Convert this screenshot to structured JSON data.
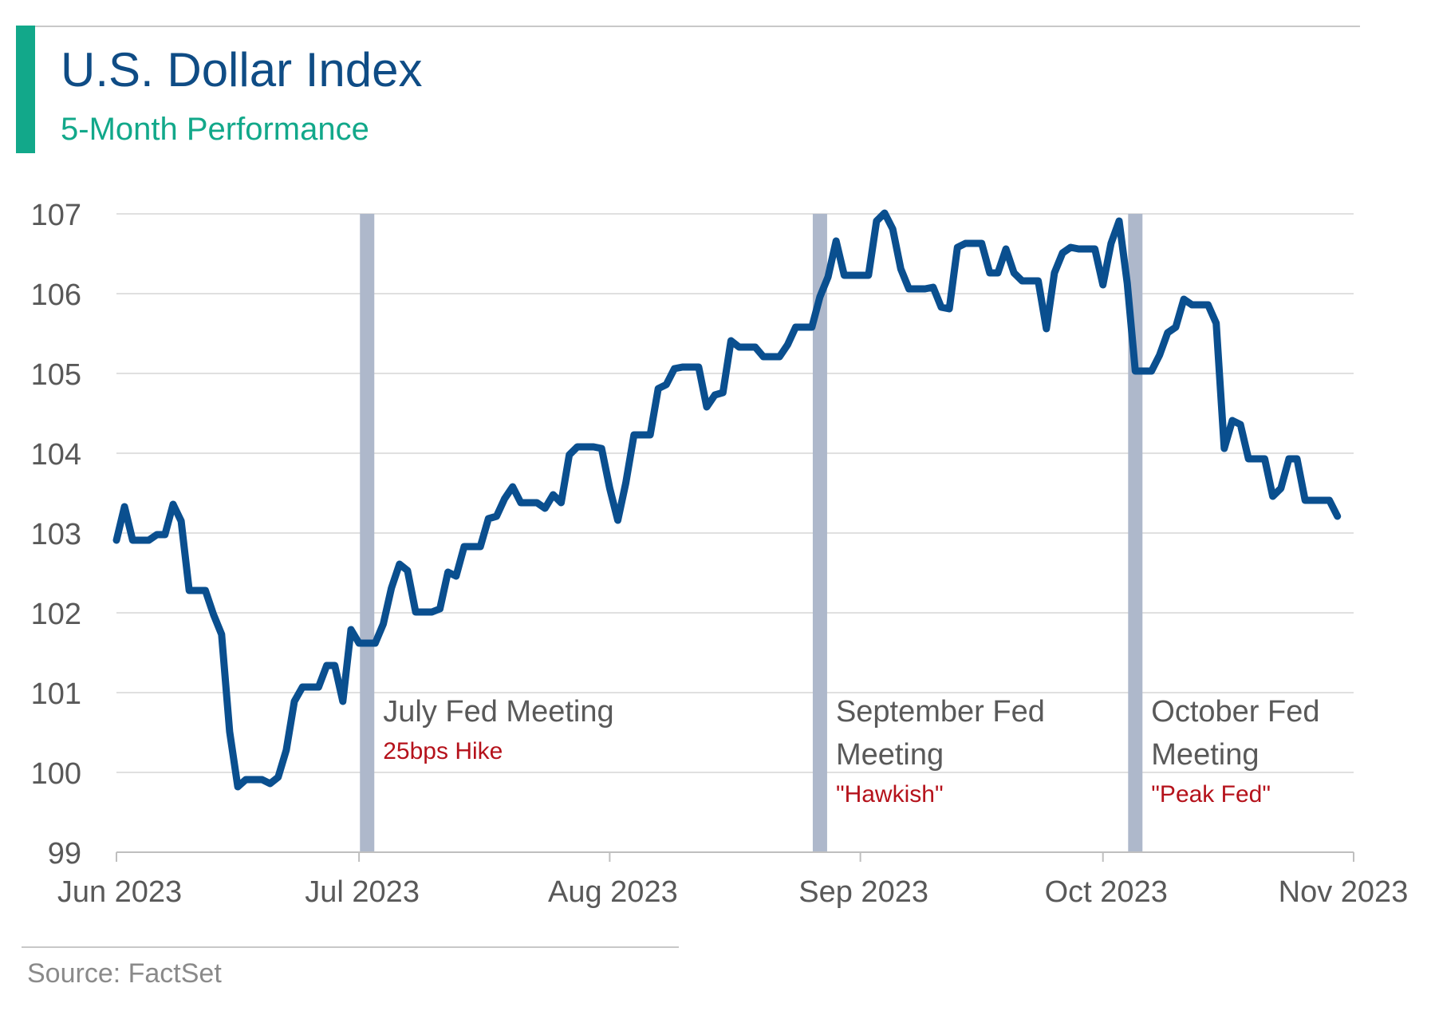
{
  "header": {
    "title": "U.S. Dollar Index",
    "subtitle": "5-Month Performance"
  },
  "footer": {
    "source": "Source: FactSet"
  },
  "colors": {
    "accent": "#12a88a",
    "title": "#0f4c85",
    "line": "#0a4f8f",
    "meeting_band": "#aeb8cb",
    "annotation_note": "#b5121b",
    "annotation_text": "#595959",
    "axis_text": "#595959",
    "gridline": "#d6d6d6"
  },
  "chart_data": {
    "type": "line",
    "title": "U.S. Dollar Index",
    "subtitle": "5-Month Performance",
    "xlabel": "",
    "ylabel": "",
    "ylim": [
      99,
      107
    ],
    "xlim": [
      "2023-06-01",
      "2023-11-01"
    ],
    "grid": true,
    "y_ticks": [
      99,
      100,
      101,
      102,
      103,
      104,
      105,
      106,
      107
    ],
    "x_ticks": [
      {
        "date": "2023-06-01",
        "label": "Jun 2023"
      },
      {
        "date": "2023-07-01",
        "label": "Jul 2023"
      },
      {
        "date": "2023-08-01",
        "label": "Aug 2023"
      },
      {
        "date": "2023-09-01",
        "label": "Sep 2023"
      },
      {
        "date": "2023-10-01",
        "label": "Oct 2023"
      },
      {
        "date": "2023-11-01",
        "label": "Nov 2023"
      }
    ],
    "series": [
      {
        "points": [
          [
            "2023-06-01",
            102.91
          ],
          [
            "2023-06-02",
            103.33
          ],
          [
            "2023-06-03",
            102.91
          ],
          [
            "2023-06-05",
            102.91
          ],
          [
            "2023-06-06",
            102.98
          ],
          [
            "2023-06-07",
            102.98
          ],
          [
            "2023-06-08",
            103.36
          ],
          [
            "2023-06-09",
            103.15
          ],
          [
            "2023-06-10",
            102.28
          ],
          [
            "2023-06-12",
            102.28
          ],
          [
            "2023-06-13",
            101.98
          ],
          [
            "2023-06-14",
            101.73
          ],
          [
            "2023-06-15",
            100.51
          ],
          [
            "2023-06-16",
            99.82
          ],
          [
            "2023-06-17",
            99.91
          ],
          [
            "2023-06-19",
            99.91
          ],
          [
            "2023-06-20",
            99.86
          ],
          [
            "2023-06-21",
            99.94
          ],
          [
            "2023-06-22",
            100.28
          ],
          [
            "2023-06-23",
            100.89
          ],
          [
            "2023-06-24",
            101.07
          ],
          [
            "2023-06-26",
            101.07
          ],
          [
            "2023-06-27",
            101.34
          ],
          [
            "2023-06-28",
            101.34
          ],
          [
            "2023-06-29",
            100.89
          ],
          [
            "2023-06-30",
            101.79
          ],
          [
            "2023-07-01",
            101.62
          ],
          [
            "2023-07-03",
            101.62
          ],
          [
            "2023-07-04",
            101.86
          ],
          [
            "2023-07-05",
            102.31
          ],
          [
            "2023-07-06",
            102.61
          ],
          [
            "2023-07-07",
            102.53
          ],
          [
            "2023-07-08",
            102.01
          ],
          [
            "2023-07-10",
            102.01
          ],
          [
            "2023-07-11",
            102.05
          ],
          [
            "2023-07-12",
            102.51
          ],
          [
            "2023-07-13",
            102.46
          ],
          [
            "2023-07-14",
            102.83
          ],
          [
            "2023-07-16",
            102.83
          ],
          [
            "2023-07-17",
            103.18
          ],
          [
            "2023-07-18",
            103.21
          ],
          [
            "2023-07-19",
            103.43
          ],
          [
            "2023-07-20",
            103.58
          ],
          [
            "2023-07-21",
            103.38
          ],
          [
            "2023-07-23",
            103.38
          ],
          [
            "2023-07-24",
            103.31
          ],
          [
            "2023-07-25",
            103.48
          ],
          [
            "2023-07-26",
            103.38
          ],
          [
            "2023-07-27",
            103.98
          ],
          [
            "2023-07-28",
            104.08
          ],
          [
            "2023-07-30",
            104.08
          ],
          [
            "2023-07-31",
            104.06
          ],
          [
            "2023-08-01",
            103.56
          ],
          [
            "2023-08-02",
            103.16
          ],
          [
            "2023-08-03",
            103.63
          ],
          [
            "2023-08-04",
            104.23
          ],
          [
            "2023-08-06",
            104.23
          ],
          [
            "2023-08-07",
            104.81
          ],
          [
            "2023-08-08",
            104.86
          ],
          [
            "2023-08-09",
            105.06
          ],
          [
            "2023-08-10",
            105.08
          ],
          [
            "2023-08-12",
            105.08
          ],
          [
            "2023-08-13",
            104.58
          ],
          [
            "2023-08-14",
            104.73
          ],
          [
            "2023-08-15",
            104.76
          ],
          [
            "2023-08-16",
            105.41
          ],
          [
            "2023-08-17",
            105.33
          ],
          [
            "2023-08-19",
            105.33
          ],
          [
            "2023-08-20",
            105.21
          ],
          [
            "2023-08-22",
            105.21
          ],
          [
            "2023-08-23",
            105.36
          ],
          [
            "2023-08-24",
            105.58
          ],
          [
            "2023-08-26",
            105.58
          ],
          [
            "2023-08-27",
            105.96
          ],
          [
            "2023-08-28",
            106.21
          ],
          [
            "2023-08-29",
            106.66
          ],
          [
            "2023-08-30",
            106.23
          ],
          [
            "2023-09-01",
            106.23
          ],
          [
            "2023-09-02",
            106.23
          ],
          [
            "2023-09-03",
            106.91
          ],
          [
            "2023-09-04",
            107.01
          ],
          [
            "2023-09-05",
            106.81
          ],
          [
            "2023-09-06",
            106.31
          ],
          [
            "2023-09-07",
            106.06
          ],
          [
            "2023-09-09",
            106.06
          ],
          [
            "2023-09-10",
            106.08
          ],
          [
            "2023-09-11",
            105.83
          ],
          [
            "2023-09-12",
            105.81
          ],
          [
            "2023-09-13",
            106.58
          ],
          [
            "2023-09-14",
            106.63
          ],
          [
            "2023-09-16",
            106.63
          ],
          [
            "2023-09-17",
            106.26
          ],
          [
            "2023-09-18",
            106.26
          ],
          [
            "2023-09-19",
            106.56
          ],
          [
            "2023-09-20",
            106.26
          ],
          [
            "2023-09-21",
            106.16
          ],
          [
            "2023-09-23",
            106.16
          ],
          [
            "2023-09-24",
            105.56
          ],
          [
            "2023-09-25",
            106.26
          ],
          [
            "2023-09-26",
            106.51
          ],
          [
            "2023-09-27",
            106.58
          ],
          [
            "2023-09-28",
            106.56
          ],
          [
            "2023-09-30",
            106.56
          ],
          [
            "2023-10-01",
            106.11
          ],
          [
            "2023-10-02",
            106.63
          ],
          [
            "2023-10-03",
            106.91
          ],
          [
            "2023-10-04",
            106.13
          ],
          [
            "2023-10-05",
            105.03
          ],
          [
            "2023-10-07",
            105.03
          ],
          [
            "2023-10-08",
            105.23
          ],
          [
            "2023-10-09",
            105.51
          ],
          [
            "2023-10-10",
            105.58
          ],
          [
            "2023-10-11",
            105.93
          ],
          [
            "2023-10-12",
            105.86
          ],
          [
            "2023-10-14",
            105.86
          ],
          [
            "2023-10-15",
            105.63
          ],
          [
            "2023-10-16",
            104.06
          ],
          [
            "2023-10-17",
            104.41
          ],
          [
            "2023-10-18",
            104.36
          ],
          [
            "2023-10-19",
            103.93
          ],
          [
            "2023-10-21",
            103.93
          ],
          [
            "2023-10-22",
            103.46
          ],
          [
            "2023-10-23",
            103.56
          ],
          [
            "2023-10-24",
            103.93
          ],
          [
            "2023-10-25",
            103.93
          ],
          [
            "2023-10-26",
            103.41
          ],
          [
            "2023-10-28",
            103.41
          ],
          [
            "2023-10-29",
            103.41
          ],
          [
            "2023-10-30",
            103.21
          ]
        ]
      }
    ],
    "fed_meetings": [
      {
        "date": "2023-07-02",
        "title": "July Fed Meeting",
        "note": "25bps Hike"
      },
      {
        "date": "2023-08-27",
        "title": "September Fed Meeting",
        "note": "\"Hawkish\""
      },
      {
        "date": "2023-10-05",
        "title": "October Fed Meeting",
        "note": "\"Peak Fed\""
      }
    ]
  }
}
